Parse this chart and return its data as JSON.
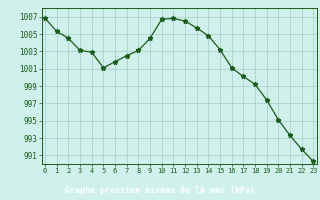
{
  "x": [
    0,
    1,
    2,
    3,
    4,
    5,
    6,
    7,
    8,
    9,
    10,
    11,
    12,
    13,
    14,
    15,
    16,
    17,
    18,
    19,
    20,
    21,
    22,
    23
  ],
  "y": [
    1006.8,
    1005.3,
    1004.5,
    1003.1,
    1002.9,
    1001.1,
    1001.8,
    1002.5,
    1003.1,
    1004.5,
    1006.7,
    1006.8,
    1006.5,
    1005.7,
    1004.8,
    1003.2,
    1001.1,
    1000.1,
    999.2,
    997.4,
    995.1,
    993.3,
    991.7,
    990.3
  ],
  "ylim": [
    990,
    1008
  ],
  "yticks": [
    991,
    993,
    995,
    997,
    999,
    1001,
    1003,
    1005,
    1007
  ],
  "xticks": [
    0,
    1,
    2,
    3,
    4,
    5,
    6,
    7,
    8,
    9,
    10,
    11,
    12,
    13,
    14,
    15,
    16,
    17,
    18,
    19,
    20,
    21,
    22,
    23
  ],
  "line_color": "#1a5c1a",
  "marker": "*",
  "marker_size": 3.5,
  "bg_color": "#cff0eb",
  "grid_color": "#aad4cc",
  "xlabel": "Graphe pression niveau de la mer (hPa)",
  "xlabel_color": "#ffffff",
  "xlabel_bg": "#2d6a2d",
  "tick_color": "#1a5c1a",
  "spine_color": "#1a5c1a"
}
